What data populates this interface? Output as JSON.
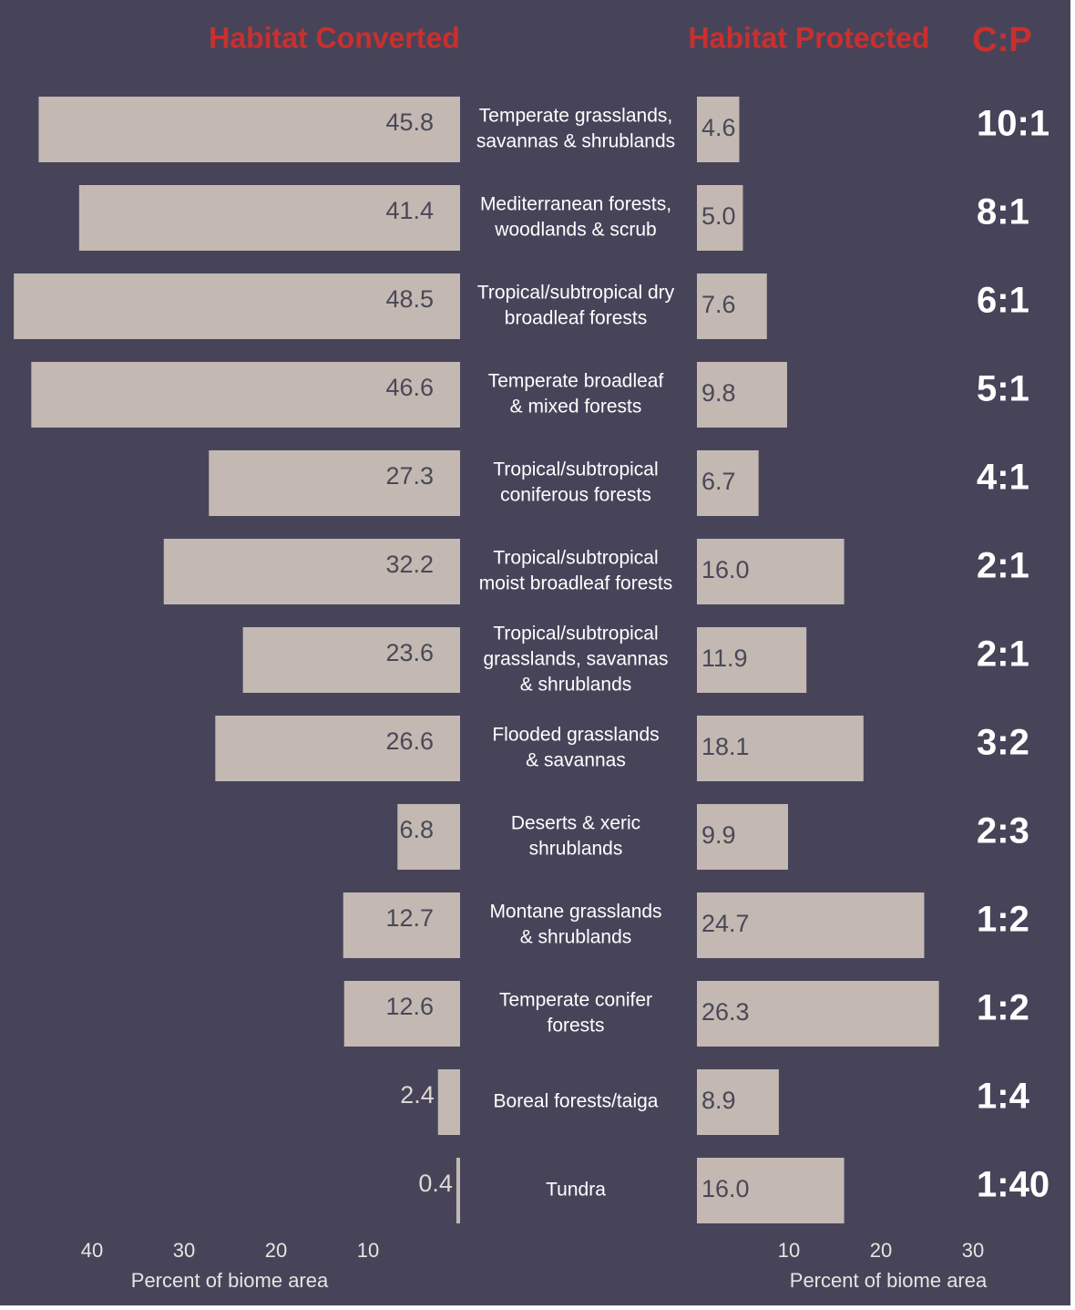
{
  "chart_data": {
    "type": "butterfly",
    "categories": [
      [
        "Temperate grasslands,",
        "savannas & shrublands"
      ],
      [
        "Mediterranean forests,",
        "woodlands & scrub"
      ],
      [
        "Tropical/subtropical dry",
        "broadleaf forests"
      ],
      [
        "Temperate broadleaf",
        "& mixed forests"
      ],
      [
        "Tropical/subtropical",
        "coniferous forests"
      ],
      [
        "Tropical/subtropical",
        "moist broadleaf forests"
      ],
      [
        "Tropical/subtropical",
        "grasslands, savannas",
        "& shrublands"
      ],
      [
        "Flooded grasslands",
        "& savannas"
      ],
      [
        "Deserts & xeric",
        "shrublands"
      ],
      [
        "Montane grasslands",
        "& shrublands"
      ],
      [
        "Temperate conifer",
        "forests"
      ],
      [
        "Boreal forests/taiga"
      ],
      [
        "Tundra"
      ]
    ],
    "series": [
      {
        "name": "Habitat Converted",
        "color": "#c3b9b2",
        "values": [
          45.8,
          41.4,
          48.5,
          46.6,
          27.3,
          32.2,
          23.6,
          26.6,
          6.8,
          12.7,
          12.6,
          2.4,
          0.4
        ],
        "value_labels": [
          "45.8",
          "41.4",
          "48.5",
          "46.6",
          "27.3",
          "32.2",
          "23.6",
          "26.6",
          "6.8",
          "12.7",
          "12.6",
          "2.4",
          "0.4"
        ],
        "xlim": [
          0,
          50
        ],
        "xticks": [
          10,
          20,
          30,
          40
        ],
        "axis_label": "Percent of biome area"
      },
      {
        "name": "Habitat Protected",
        "color": "#c3b9b2",
        "values": [
          4.6,
          5.0,
          7.6,
          9.8,
          6.7,
          16.0,
          11.9,
          18.1,
          9.9,
          24.7,
          26.3,
          8.9,
          16.0
        ],
        "value_labels": [
          "4.6",
          "5.0",
          "7.6",
          "9.8",
          "6.7",
          "16.0",
          "11.9",
          "18.1",
          "9.9",
          "24.7",
          "26.3",
          "8.9",
          "16.0"
        ],
        "xlim": [
          0,
          40
        ],
        "xticks": [
          10,
          20,
          30
        ],
        "axis_label": "Percent of biome area"
      }
    ],
    "ratio_title": "C:P",
    "ratios": [
      "10:1",
      "8:1",
      "6:1",
      "5:1",
      "4:1",
      "2:1",
      "2:1",
      "3:2",
      "2:3",
      "1:2",
      "1:2",
      "1:4",
      "1:40"
    ]
  }
}
